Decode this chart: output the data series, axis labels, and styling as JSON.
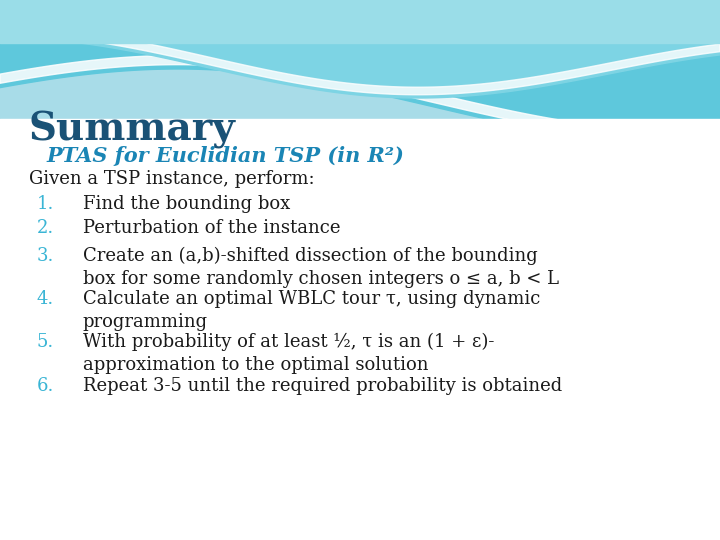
{
  "title": "Summary",
  "subtitle": "PTAS for Euclidian TSP (in R²)",
  "intro": "Given a TSP instance, perform:",
  "items": [
    {
      "num": "1.",
      "text": "Find the bounding box"
    },
    {
      "num": "2.",
      "text": "Perturbation of the instance"
    },
    {
      "num": "3.",
      "text": "Create an (a,b)-shifted dissection of the bounding\nbox for some randomly chosen integers o ≤ a, b < L"
    },
    {
      "num": "4.",
      "text": "Calculate an optimal WBLC tour τ, using dynamic\nprogramming"
    },
    {
      "num": "5.",
      "text": "With probability of at least ½, τ is an (1 + ε)-\napproximation to the optimal solution"
    },
    {
      "num": "6.",
      "text": "Repeat 3-5 until the required probability is obtained"
    }
  ],
  "title_color": "#1a5276",
  "subtitle_color": "#1a85b5",
  "number_color": "#3ab5d5",
  "text_color": "#1a1a1a",
  "title_fontsize": 28,
  "subtitle_fontsize": 15,
  "intro_fontsize": 13,
  "item_fontsize": 13,
  "wave_top_color": "#8ed8e8",
  "wave_mid_color": "#b8e8f0",
  "wave_dark_color": "#5bbfd8"
}
